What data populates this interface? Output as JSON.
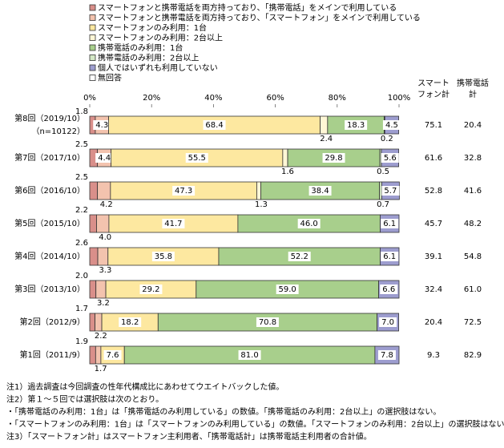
{
  "chart_data": {
    "type": "stacked_bar_horizontal",
    "categories": [
      "第8回（2019/10）",
      "第7回（2017/10）",
      "第6回（2016/10）",
      "第5回（2015/10）",
      "第4回（2014/10）",
      "第3回（2013/10）",
      "第2回（2012/9）",
      "第1回（2011/9）"
    ],
    "n_label": "（n=10122）",
    "xlim": [
      0,
      100
    ],
    "xticks": [
      {
        "value": 0,
        "label": "0%"
      },
      {
        "value": 20,
        "label": "20%"
      },
      {
        "value": 40,
        "label": "40%"
      },
      {
        "value": 60,
        "label": "60%"
      },
      {
        "value": 80,
        "label": "80%"
      },
      {
        "value": 100,
        "label": "100%"
      }
    ],
    "series": [
      {
        "name": "スマートフォンと携帯電話を両方持っており、「携帯電話」をメインで利用している",
        "color": "#d98f8a",
        "values": [
          1.8,
          2.5,
          2.5,
          2.2,
          2.6,
          2.0,
          1.7,
          1.9
        ],
        "value_labels": [
          "1.8",
          "2.5",
          "2.5",
          "2.2",
          "2.6",
          "2.0",
          "1.7",
          "1.9"
        ]
      },
      {
        "name": "スマートフォンと携帯電話を両方持っており、「スマートフォン」をメインで利用している",
        "color": "#f3c3ae",
        "values": [
          4.3,
          4.4,
          4.2,
          4.0,
          3.3,
          3.2,
          2.2,
          1.7
        ],
        "value_labels": [
          "4.3",
          "4.4",
          "4.2",
          "4.0",
          "3.3",
          "3.2",
          "2.2",
          "1.7"
        ]
      },
      {
        "name": "スマートフォンのみ利用：1台",
        "color": "#fde8a0",
        "values": [
          68.4,
          55.5,
          47.3,
          41.7,
          35.8,
          29.2,
          18.2,
          7.6
        ],
        "value_labels": [
          "68.4",
          "55.5",
          "47.3",
          "41.7",
          "35.8",
          "29.2",
          "18.2",
          "7.6"
        ]
      },
      {
        "name": "スマートフォンのみ利用：2台以上",
        "color": "#fff7d6",
        "values": [
          2.4,
          1.6,
          1.3,
          null,
          null,
          null,
          null,
          null
        ],
        "value_labels": [
          "2.4",
          "1.6",
          "1.3",
          null,
          null,
          null,
          null,
          null
        ]
      },
      {
        "name": "携帯電話のみ利用：1台",
        "color": "#a8cf8c",
        "values": [
          18.3,
          29.8,
          38.4,
          46.0,
          52.2,
          59.0,
          70.8,
          81.0
        ],
        "value_labels": [
          "18.3",
          "29.8",
          "38.4",
          "46.0",
          "52.2",
          "59.0",
          "70.8",
          "81.0"
        ]
      },
      {
        "name": "携帯電話のみ利用：2台以上",
        "color": "#d4e8c6",
        "values": [
          0.2,
          0.5,
          0.7,
          null,
          null,
          null,
          null,
          null
        ],
        "value_labels": [
          "0.2",
          "0.5",
          "0.7",
          null,
          null,
          null,
          null,
          null
        ]
      },
      {
        "name": "個人ではいずれも利用していない",
        "color": "#9d9dcf",
        "values": [
          4.5,
          5.6,
          5.7,
          6.1,
          6.1,
          6.6,
          7.0,
          7.8
        ],
        "value_labels": [
          "4.5",
          "5.6",
          "5.7",
          "6.1",
          "6.1",
          "6.6",
          "7.0",
          "7.8"
        ]
      },
      {
        "name": "無回答",
        "color": "#ffffff",
        "values": [
          null,
          null,
          null,
          null,
          null,
          null,
          null,
          null
        ]
      }
    ],
    "totals": [
      {
        "name_lines": [
          "スマート",
          "フォン計"
        ],
        "values": [
          75.1,
          61.6,
          52.8,
          45.7,
          39.1,
          32.4,
          20.4,
          9.3
        ],
        "value_labels": [
          "75.1",
          "61.6",
          "52.8",
          "45.7",
          "39.1",
          "32.4",
          "20.4",
          "9.3"
        ]
      },
      {
        "name_lines": [
          "携帯電話",
          "計"
        ],
        "values": [
          20.4,
          32.8,
          41.6,
          48.2,
          54.8,
          61.0,
          72.5,
          82.9
        ],
        "value_labels": [
          "20.4",
          "32.8",
          "41.6",
          "48.2",
          "54.8",
          "61.0",
          "72.5",
          "82.9"
        ]
      }
    ],
    "notes": [
      "注1）過去調査は今回調査の性年代構成比にあわせてウエイトバックした値。",
      "注2）第１～５回では選択肢は次のとおり。",
      "・「携帯電話のみ利用：1台」は「携帯電話のみ利用している」の数値。「携帯電話のみ利用：2台以上」の選択肢はない。",
      "・「スマートフォンのみ利用：1台」は「スマートフォンのみ利用している」の数値。「スマートフォンのみ利用：2台以上」の選択肢はない。",
      "注3）「スマートフォン計」はスマートフォン主利用者、「携帯電話計」は携帯電話主利用者の合計値。"
    ]
  }
}
